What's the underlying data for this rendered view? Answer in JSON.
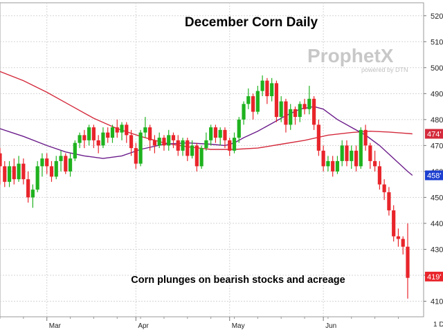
{
  "chart_data": {
    "type": "candlestick",
    "title": "December Corn Daily",
    "annotation": "Corn plunges on bearish stocks and acreage",
    "watermark": {
      "brand": "ProphetX",
      "tagline": "powered by DTN"
    },
    "y_ticks": [
      "520",
      "510",
      "500",
      "490",
      "480",
      "470",
      "460",
      "450",
      "440",
      "430",
      "420",
      "410"
    ],
    "y_tick_values": [
      520,
      510,
      500,
      490,
      480,
      470,
      460,
      450,
      440,
      430,
      420,
      410
    ],
    "ylim": [
      404,
      525
    ],
    "x_ticks": [
      "Mar",
      "Apr",
      "May",
      "Jun"
    ],
    "x_tick_index": [
      10,
      29,
      49,
      69
    ],
    "period_label": "1 D",
    "grid": true,
    "colors": {
      "up": "#1fb21f",
      "down": "#e8252b",
      "ma_short": "#6a1b8a",
      "ma_long": "#d42a3c"
    },
    "last_price_tags": [
      {
        "label": "474'",
        "value": 474.5,
        "color": "#d42a3c"
      },
      {
        "label": "458'",
        "value": 458.5,
        "color": "#1c3fd0"
      },
      {
        "label": "419'",
        "value": 419.5,
        "color": "#e8252b"
      }
    ],
    "candles": [
      [
        467,
        462,
        469,
        455
      ],
      [
        462,
        456,
        464,
        454
      ],
      [
        456,
        462,
        464,
        454
      ],
      [
        462,
        457,
        465,
        455
      ],
      [
        457,
        463,
        466,
        456
      ],
      [
        463,
        457,
        465,
        455
      ],
      [
        457,
        450,
        460,
        448
      ],
      [
        450,
        453,
        455,
        446
      ],
      [
        453,
        462,
        464,
        452
      ],
      [
        462,
        465,
        467,
        458
      ],
      [
        465,
        462,
        467,
        459
      ],
      [
        462,
        458,
        464,
        456
      ],
      [
        458,
        464,
        466,
        457
      ],
      [
        464,
        466,
        468,
        460
      ],
      [
        466,
        460,
        467,
        459
      ],
      [
        460,
        465,
        467,
        458
      ],
      [
        465,
        471,
        472,
        464
      ],
      [
        471,
        474,
        475,
        469
      ],
      [
        474,
        472,
        476,
        469
      ],
      [
        472,
        477,
        478,
        470
      ],
      [
        477,
        472,
        478,
        469
      ],
      [
        472,
        470,
        474,
        467
      ],
      [
        470,
        475,
        477,
        469
      ],
      [
        475,
        473,
        477,
        471
      ],
      [
        473,
        477,
        478,
        471
      ],
      [
        477,
        475,
        480,
        473
      ],
      [
        475,
        478,
        479,
        472
      ],
      [
        478,
        474,
        479,
        471
      ],
      [
        474,
        469,
        476,
        466
      ],
      [
        469,
        463,
        471,
        461
      ],
      [
        463,
        475,
        476,
        462
      ],
      [
        475,
        477,
        481,
        473
      ],
      [
        477,
        472,
        478,
        468
      ],
      [
        472,
        470,
        474,
        467
      ],
      [
        470,
        473,
        475,
        469
      ],
      [
        473,
        470,
        474,
        468
      ],
      [
        470,
        474,
        476,
        468
      ],
      [
        474,
        472,
        475,
        469
      ],
      [
        472,
        468,
        474,
        466
      ],
      [
        468,
        472,
        473,
        466
      ],
      [
        472,
        466,
        473,
        464
      ],
      [
        466,
        470,
        472,
        465
      ],
      [
        470,
        462,
        471,
        460
      ],
      [
        462,
        469,
        470,
        461
      ],
      [
        469,
        472,
        475,
        468
      ],
      [
        472,
        477,
        478,
        470
      ],
      [
        477,
        473,
        478,
        471
      ],
      [
        473,
        476,
        477,
        470
      ],
      [
        476,
        472,
        477,
        469
      ],
      [
        472,
        468,
        473,
        466
      ],
      [
        468,
        473,
        475,
        467
      ],
      [
        473,
        480,
        481,
        471
      ],
      [
        480,
        486,
        487,
        478
      ],
      [
        486,
        489,
        492,
        484
      ],
      [
        489,
        483,
        490,
        480
      ],
      [
        483,
        491,
        493,
        482
      ],
      [
        491,
        495,
        497,
        489
      ],
      [
        495,
        489,
        496,
        486
      ],
      [
        489,
        494,
        496,
        487
      ],
      [
        494,
        481,
        495,
        479
      ],
      [
        481,
        487,
        489,
        479
      ],
      [
        487,
        478,
        488,
        475
      ],
      [
        478,
        484,
        486,
        476
      ],
      [
        484,
        481,
        485,
        478
      ],
      [
        481,
        486,
        487,
        479
      ],
      [
        486,
        484,
        488,
        482
      ],
      [
        484,
        488,
        493,
        482
      ],
      [
        488,
        478,
        489,
        476
      ],
      [
        478,
        468,
        480,
        466
      ],
      [
        468,
        462,
        470,
        460
      ],
      [
        462,
        464,
        466,
        460
      ],
      [
        464,
        460,
        466,
        458
      ],
      [
        460,
        464,
        466,
        459
      ],
      [
        464,
        470,
        472,
        462
      ],
      [
        470,
        464,
        472,
        462
      ],
      [
        464,
        468,
        470,
        461
      ],
      [
        468,
        462,
        470,
        460
      ],
      [
        462,
        476,
        477,
        461
      ],
      [
        476,
        470,
        478,
        468
      ],
      [
        470,
        464,
        471,
        461
      ],
      [
        464,
        462,
        468,
        460
      ],
      [
        462,
        455,
        464,
        453
      ],
      [
        455,
        452,
        457,
        449
      ],
      [
        452,
        445,
        454,
        443
      ],
      [
        445,
        435,
        447,
        433
      ],
      [
        435,
        434,
        438,
        431
      ],
      [
        434,
        431,
        435,
        428
      ],
      [
        431,
        419,
        440,
        411
      ]
    ],
    "ma_short": [
      [
        0,
        476.5
      ],
      [
        5,
        473.5
      ],
      [
        10,
        470
      ],
      [
        14,
        467.5
      ],
      [
        18,
        466
      ],
      [
        22,
        465
      ],
      [
        26,
        466
      ],
      [
        30,
        468.5
      ],
      [
        35,
        470.5
      ],
      [
        40,
        471
      ],
      [
        45,
        470.5
      ],
      [
        48,
        470
      ],
      [
        50,
        471
      ],
      [
        52,
        473
      ],
      [
        55,
        475.5
      ],
      [
        58,
        478.5
      ],
      [
        61,
        481.5
      ],
      [
        64,
        484
      ],
      [
        67,
        485
      ],
      [
        69,
        484
      ],
      [
        72,
        480
      ],
      [
        75,
        477
      ],
      [
        78,
        474
      ],
      [
        81,
        470
      ],
      [
        84,
        465
      ],
      [
        87,
        460
      ],
      [
        88,
        458.5
      ]
    ],
    "ma_long": [
      [
        0,
        498.5
      ],
      [
        5,
        495
      ],
      [
        10,
        490.5
      ],
      [
        15,
        485.5
      ],
      [
        20,
        480.5
      ],
      [
        25,
        476.5
      ],
      [
        30,
        473.5
      ],
      [
        35,
        471
      ],
      [
        40,
        469.5
      ],
      [
        45,
        468.5
      ],
      [
        50,
        468.5
      ],
      [
        55,
        469
      ],
      [
        60,
        470.5
      ],
      [
        65,
        472
      ],
      [
        70,
        474
      ],
      [
        75,
        475
      ],
      [
        79,
        475.5
      ],
      [
        83,
        475.2
      ],
      [
        86,
        474.8
      ],
      [
        88,
        474.5
      ]
    ]
  }
}
